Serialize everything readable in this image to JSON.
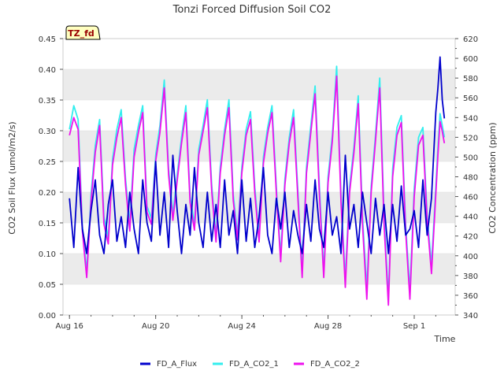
{
  "chart_data": {
    "type": "line",
    "title": "Tonzi Forced Diffusion Soil CO2",
    "badge": "TZ_fd",
    "xlabel": "Time",
    "ylabel_left": "CO2 Soil Flux (umol/m2/s)",
    "ylabel_right": "CO2 Concentration (ppm)",
    "x_unit": "days since Aug 16",
    "xlim": [
      -0.3,
      17.9
    ],
    "ylim_left": [
      0.0,
      0.45
    ],
    "ylim_right": [
      340,
      620
    ],
    "x_ticks": [
      {
        "x": 0,
        "label": "Aug 16"
      },
      {
        "x": 4,
        "label": "Aug 20"
      },
      {
        "x": 8,
        "label": "Aug 24"
      },
      {
        "x": 12,
        "label": "Aug 28"
      },
      {
        "x": 16,
        "label": "Sep 1"
      }
    ],
    "y_ticks_left": [
      "0.00",
      "0.05",
      "0.10",
      "0.15",
      "0.20",
      "0.25",
      "0.30",
      "0.35",
      "0.40",
      "0.45"
    ],
    "y_ticks_right": [
      "340",
      "360",
      "380",
      "400",
      "420",
      "440",
      "460",
      "480",
      "500",
      "520",
      "540",
      "560",
      "580",
      "600",
      "620"
    ],
    "grid": "horizontal-bands",
    "legend_position": "bottom",
    "colors": {
      "FD_A_Flux": "#0000cc",
      "FD_A_CO2_1": "#33eeee",
      "FD_A_CO2_2": "#ee11ee",
      "badge_bg": "#ffffc0",
      "badge_text": "#990000",
      "band": "#ebebeb"
    },
    "series": [
      {
        "name": "FD_A_Flux",
        "axis": "left",
        "points": [
          [
            0.0,
            0.19
          ],
          [
            0.2,
            0.11
          ],
          [
            0.4,
            0.24
          ],
          [
            0.6,
            0.14
          ],
          [
            0.8,
            0.1
          ],
          [
            1.0,
            0.17
          ],
          [
            1.2,
            0.22
          ],
          [
            1.4,
            0.13
          ],
          [
            1.6,
            0.1
          ],
          [
            1.8,
            0.18
          ],
          [
            2.0,
            0.22
          ],
          [
            2.2,
            0.12
          ],
          [
            2.4,
            0.16
          ],
          [
            2.6,
            0.11
          ],
          [
            2.8,
            0.2
          ],
          [
            3.0,
            0.14
          ],
          [
            3.2,
            0.1
          ],
          [
            3.4,
            0.22
          ],
          [
            3.6,
            0.15
          ],
          [
            3.8,
            0.12
          ],
          [
            4.0,
            0.25
          ],
          [
            4.2,
            0.13
          ],
          [
            4.4,
            0.2
          ],
          [
            4.6,
            0.11
          ],
          [
            4.8,
            0.26
          ],
          [
            5.0,
            0.17
          ],
          [
            5.2,
            0.1
          ],
          [
            5.4,
            0.18
          ],
          [
            5.6,
            0.13
          ],
          [
            5.8,
            0.24
          ],
          [
            6.0,
            0.15
          ],
          [
            6.2,
            0.11
          ],
          [
            6.4,
            0.2
          ],
          [
            6.6,
            0.12
          ],
          [
            6.8,
            0.18
          ],
          [
            7.0,
            0.11
          ],
          [
            7.2,
            0.22
          ],
          [
            7.4,
            0.13
          ],
          [
            7.6,
            0.17
          ],
          [
            7.8,
            0.1
          ],
          [
            8.0,
            0.22
          ],
          [
            8.2,
            0.12
          ],
          [
            8.4,
            0.19
          ],
          [
            8.6,
            0.11
          ],
          [
            8.8,
            0.16
          ],
          [
            9.0,
            0.24
          ],
          [
            9.2,
            0.13
          ],
          [
            9.4,
            0.1
          ],
          [
            9.6,
            0.19
          ],
          [
            9.8,
            0.14
          ],
          [
            10.0,
            0.2
          ],
          [
            10.2,
            0.11
          ],
          [
            10.4,
            0.17
          ],
          [
            10.6,
            0.13
          ],
          [
            10.8,
            0.1
          ],
          [
            11.0,
            0.18
          ],
          [
            11.2,
            0.12
          ],
          [
            11.4,
            0.22
          ],
          [
            11.6,
            0.14
          ],
          [
            11.8,
            0.11
          ],
          [
            12.0,
            0.2
          ],
          [
            12.2,
            0.13
          ],
          [
            12.4,
            0.16
          ],
          [
            12.6,
            0.1
          ],
          [
            12.8,
            0.26
          ],
          [
            13.0,
            0.14
          ],
          [
            13.2,
            0.18
          ],
          [
            13.4,
            0.11
          ],
          [
            13.6,
            0.2
          ],
          [
            13.8,
            0.15
          ],
          [
            14.0,
            0.1
          ],
          [
            14.2,
            0.19
          ],
          [
            14.4,
            0.13
          ],
          [
            14.6,
            0.18
          ],
          [
            14.8,
            0.1
          ],
          [
            15.0,
            0.18
          ],
          [
            15.2,
            0.12
          ],
          [
            15.4,
            0.21
          ],
          [
            15.6,
            0.13
          ],
          [
            15.8,
            0.14
          ],
          [
            16.0,
            0.17
          ],
          [
            16.2,
            0.11
          ],
          [
            16.4,
            0.22
          ],
          [
            16.6,
            0.13
          ],
          [
            16.8,
            0.19
          ],
          [
            17.0,
            0.33
          ],
          [
            17.1,
            0.37
          ],
          [
            17.2,
            0.42
          ],
          [
            17.3,
            0.35
          ],
          [
            17.4,
            0.32
          ]
        ]
      },
      {
        "name": "FD_A_CO2_1",
        "axis": "right",
        "points": [
          [
            0.0,
            528
          ],
          [
            0.2,
            552
          ],
          [
            0.4,
            538
          ],
          [
            0.6,
            430
          ],
          [
            0.8,
            384
          ],
          [
            1.0,
            462
          ],
          [
            1.2,
            512
          ],
          [
            1.4,
            538
          ],
          [
            1.6,
            440
          ],
          [
            1.8,
            418
          ],
          [
            2.0,
            498
          ],
          [
            2.2,
            528
          ],
          [
            2.4,
            548
          ],
          [
            2.6,
            478
          ],
          [
            2.8,
            432
          ],
          [
            3.0,
            508
          ],
          [
            3.2,
            532
          ],
          [
            3.4,
            552
          ],
          [
            3.6,
            450
          ],
          [
            3.8,
            438
          ],
          [
            4.0,
            502
          ],
          [
            4.2,
            532
          ],
          [
            4.4,
            578
          ],
          [
            4.6,
            488
          ],
          [
            4.8,
            442
          ],
          [
            5.0,
            482
          ],
          [
            5.2,
            520
          ],
          [
            5.4,
            552
          ],
          [
            5.6,
            460
          ],
          [
            5.8,
            432
          ],
          [
            6.0,
            508
          ],
          [
            6.2,
            532
          ],
          [
            6.4,
            558
          ],
          [
            6.6,
            472
          ],
          [
            6.8,
            420
          ],
          [
            7.0,
            490
          ],
          [
            7.2,
            528
          ],
          [
            7.4,
            558
          ],
          [
            7.6,
            462
          ],
          [
            7.8,
            422
          ],
          [
            8.0,
            490
          ],
          [
            8.2,
            528
          ],
          [
            8.4,
            546
          ],
          [
            8.6,
            470
          ],
          [
            8.8,
            420
          ],
          [
            9.0,
            500
          ],
          [
            9.2,
            530
          ],
          [
            9.4,
            552
          ],
          [
            9.6,
            470
          ],
          [
            9.8,
            400
          ],
          [
            10.0,
            478
          ],
          [
            10.2,
            520
          ],
          [
            10.4,
            548
          ],
          [
            10.6,
            465
          ],
          [
            10.8,
            385
          ],
          [
            11.0,
            490
          ],
          [
            11.2,
            532
          ],
          [
            11.4,
            572
          ],
          [
            11.6,
            470
          ],
          [
            11.8,
            385
          ],
          [
            12.0,
            480
          ],
          [
            12.2,
            522
          ],
          [
            12.4,
            592
          ],
          [
            12.6,
            462
          ],
          [
            12.8,
            376
          ],
          [
            13.0,
            470
          ],
          [
            13.2,
            510
          ],
          [
            13.4,
            562
          ],
          [
            13.6,
            440
          ],
          [
            13.8,
            366
          ],
          [
            14.0,
            470
          ],
          [
            14.2,
            522
          ],
          [
            14.4,
            580
          ],
          [
            14.6,
            440
          ],
          [
            14.8,
            357
          ],
          [
            15.0,
            488
          ],
          [
            15.2,
            530
          ],
          [
            15.4,
            542
          ],
          [
            15.6,
            432
          ],
          [
            15.8,
            364
          ],
          [
            16.0,
            468
          ],
          [
            16.2,
            520
          ],
          [
            16.4,
            530
          ],
          [
            16.6,
            442
          ],
          [
            16.8,
            390
          ],
          [
            17.0,
            470
          ],
          [
            17.1,
            510
          ],
          [
            17.2,
            544
          ],
          [
            17.3,
            532
          ],
          [
            17.4,
            520
          ]
        ]
      },
      {
        "name": "FD_A_CO2_2",
        "axis": "right",
        "points": [
          [
            0.0,
            522
          ],
          [
            0.2,
            540
          ],
          [
            0.4,
            528
          ],
          [
            0.6,
            425
          ],
          [
            0.8,
            378
          ],
          [
            1.0,
            455
          ],
          [
            1.2,
            505
          ],
          [
            1.4,
            532
          ],
          [
            1.6,
            432
          ],
          [
            1.8,
            412
          ],
          [
            2.0,
            492
          ],
          [
            2.2,
            520
          ],
          [
            2.4,
            540
          ],
          [
            2.6,
            472
          ],
          [
            2.8,
            425
          ],
          [
            3.0,
            500
          ],
          [
            3.2,
            525
          ],
          [
            3.4,
            545
          ],
          [
            3.6,
            444
          ],
          [
            3.8,
            432
          ],
          [
            4.0,
            496
          ],
          [
            4.2,
            525
          ],
          [
            4.4,
            570
          ],
          [
            4.6,
            482
          ],
          [
            4.8,
            436
          ],
          [
            5.0,
            476
          ],
          [
            5.2,
            514
          ],
          [
            5.4,
            545
          ],
          [
            5.6,
            454
          ],
          [
            5.8,
            426
          ],
          [
            6.0,
            502
          ],
          [
            6.2,
            526
          ],
          [
            6.4,
            550
          ],
          [
            6.6,
            466
          ],
          [
            6.8,
            414
          ],
          [
            7.0,
            484
          ],
          [
            7.2,
            522
          ],
          [
            7.4,
            550
          ],
          [
            7.6,
            456
          ],
          [
            7.8,
            416
          ],
          [
            8.0,
            484
          ],
          [
            8.2,
            522
          ],
          [
            8.4,
            538
          ],
          [
            8.6,
            464
          ],
          [
            8.8,
            414
          ],
          [
            9.0,
            494
          ],
          [
            9.2,
            524
          ],
          [
            9.4,
            545
          ],
          [
            9.6,
            464
          ],
          [
            9.8,
            394
          ],
          [
            10.0,
            472
          ],
          [
            10.2,
            514
          ],
          [
            10.4,
            540
          ],
          [
            10.6,
            458
          ],
          [
            10.8,
            378
          ],
          [
            11.0,
            484
          ],
          [
            11.2,
            525
          ],
          [
            11.4,
            564
          ],
          [
            11.6,
            462
          ],
          [
            11.8,
            378
          ],
          [
            12.0,
            474
          ],
          [
            12.2,
            516
          ],
          [
            12.4,
            582
          ],
          [
            12.6,
            455
          ],
          [
            12.8,
            368
          ],
          [
            13.0,
            464
          ],
          [
            13.2,
            504
          ],
          [
            13.4,
            554
          ],
          [
            13.6,
            432
          ],
          [
            13.8,
            356
          ],
          [
            14.0,
            464
          ],
          [
            14.2,
            516
          ],
          [
            14.4,
            570
          ],
          [
            14.6,
            432
          ],
          [
            14.8,
            350
          ],
          [
            15.0,
            480
          ],
          [
            15.2,
            522
          ],
          [
            15.4,
            535
          ],
          [
            15.6,
            425
          ],
          [
            15.8,
            356
          ],
          [
            16.0,
            460
          ],
          [
            16.2,
            512
          ],
          [
            16.4,
            522
          ],
          [
            16.6,
            436
          ],
          [
            16.8,
            382
          ],
          [
            17.0,
            462
          ],
          [
            17.1,
            502
          ],
          [
            17.2,
            536
          ],
          [
            17.3,
            526
          ],
          [
            17.4,
            514
          ]
        ]
      }
    ]
  }
}
